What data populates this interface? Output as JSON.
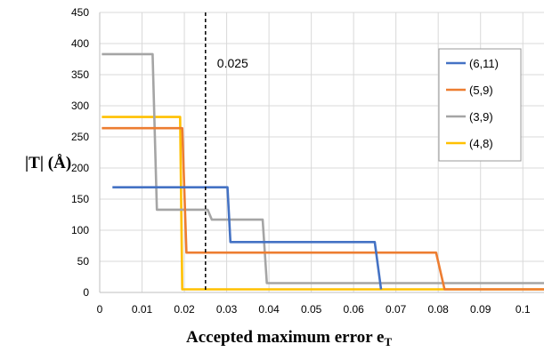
{
  "chart_data": {
    "type": "line",
    "title": "",
    "xlabel": "Accepted maximum error e",
    "xlabel_subscript": "T",
    "ylabel": "|T| (Å)",
    "xlim": [
      0,
      0.105
    ],
    "ylim": [
      0,
      450
    ],
    "x_ticks": [
      "0",
      "0.01",
      "0.02",
      "0.03",
      "0.04",
      "0.05",
      "0.06",
      "0.07",
      "0.08",
      "0.09",
      "0.1"
    ],
    "y_ticks": [
      "0",
      "50",
      "100",
      "150",
      "200",
      "250",
      "300",
      "350",
      "400",
      "450"
    ],
    "grid": true,
    "legend_position": "top-right",
    "series": [
      {
        "name": "(6,11)",
        "color": "#4472C4",
        "points": [
          [
            0.003,
            169
          ],
          [
            0.0302,
            169
          ],
          [
            0.0309,
            81
          ],
          [
            0.065,
            81
          ],
          [
            0.0665,
            5
          ]
        ]
      },
      {
        "name": "(5,9)",
        "color": "#ED7D31",
        "points": [
          [
            0.0005,
            264
          ],
          [
            0.0195,
            264
          ],
          [
            0.0205,
            64
          ],
          [
            0.0795,
            64
          ],
          [
            0.0815,
            5
          ],
          [
            0.105,
            5
          ]
        ]
      },
      {
        "name": "(3,9)",
        "color": "#A5A5A5",
        "points": [
          [
            0.0005,
            383
          ],
          [
            0.0125,
            383
          ],
          [
            0.0135,
            133
          ],
          [
            0.0255,
            133
          ],
          [
            0.0265,
            117
          ],
          [
            0.0385,
            117
          ],
          [
            0.0395,
            15
          ],
          [
            0.105,
            15
          ]
        ]
      },
      {
        "name": "(4,8)",
        "color": "#FFC000",
        "points": [
          [
            0.0005,
            282
          ],
          [
            0.019,
            282
          ],
          [
            0.0195,
            5
          ],
          [
            0.105,
            5
          ]
        ]
      }
    ],
    "annotations": [
      {
        "text": "0.025",
        "x": 0.025,
        "style": "dashed-vertical-line"
      }
    ]
  }
}
